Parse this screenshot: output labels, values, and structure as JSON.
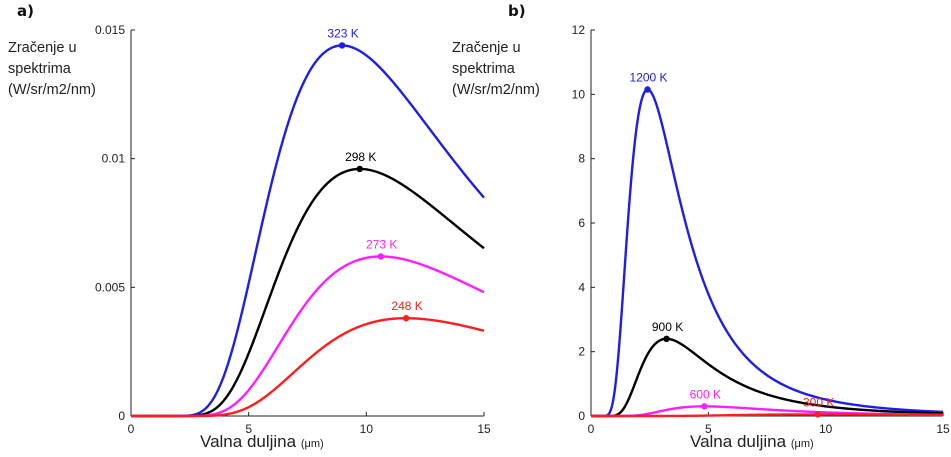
{
  "chart_data": [
    {
      "type": "line",
      "panel_label": "a)",
      "ylabel_lines": [
        "Zračenje u",
        "spektrima",
        "(W/sr/m2/nm)"
      ],
      "xlabel": "Valna duljina",
      "xlabel_unit": "(μm)",
      "xlim": [
        0,
        15
      ],
      "ylim": [
        0,
        0.015
      ],
      "xticks": [
        0,
        5,
        10,
        15
      ],
      "xtick_labels": [
        "0",
        "5",
        "10",
        "15"
      ],
      "yticks": [
        0,
        0.005,
        0.01,
        0.015
      ],
      "ytick_labels": [
        "0",
        "0.005",
        "0.01",
        "0.015"
      ],
      "grid": false,
      "series": [
        {
          "name": "323 K",
          "temperature": 323,
          "color": "#1e1ee6",
          "peak_x": 8.97,
          "peak_y": 0.0144
        },
        {
          "name": "298 K",
          "temperature": 298,
          "color": "#000000",
          "peak_x": 9.72,
          "peak_y": 0.0096
        },
        {
          "name": "273 K",
          "temperature": 273,
          "color": "#ff1eff",
          "peak_x": 10.61,
          "peak_y": 0.0062
        },
        {
          "name": "248 K",
          "temperature": 248,
          "color": "#ff1e1e",
          "peak_x": 11.69,
          "peak_y": 0.0038
        }
      ]
    },
    {
      "type": "line",
      "panel_label": "b)",
      "ylabel_lines": [
        "Zračenje u",
        "spektrima",
        "(W/sr/m2/nm)"
      ],
      "xlabel": "Valna duljina",
      "xlabel_unit": "(μm)",
      "xlim": [
        0,
        15
      ],
      "ylim": [
        0,
        12
      ],
      "xticks": [
        0,
        5,
        10,
        15
      ],
      "xtick_labels": [
        "0",
        "5",
        "10",
        "15"
      ],
      "yticks": [
        0,
        2,
        4,
        6,
        8,
        10,
        12
      ],
      "ytick_labels": [
        "0",
        "2",
        "4",
        "6",
        "8",
        "10",
        "12"
      ],
      "grid": false,
      "series": [
        {
          "name": "1200 K",
          "temperature": 1200,
          "color": "#1e1ee6",
          "peak_x": 2.41,
          "peak_y": 10.15
        },
        {
          "name": "900 K",
          "temperature": 900,
          "color": "#000000",
          "peak_x": 3.22,
          "peak_y": 2.4
        },
        {
          "name": "600 K",
          "temperature": 600,
          "color": "#ff1eff",
          "peak_x": 4.83,
          "peak_y": 0.3
        },
        {
          "name": "300 K",
          "temperature": 300,
          "color": "#ff1e1e",
          "peak_x": 9.66,
          "peak_y": 0.05
        }
      ]
    }
  ]
}
